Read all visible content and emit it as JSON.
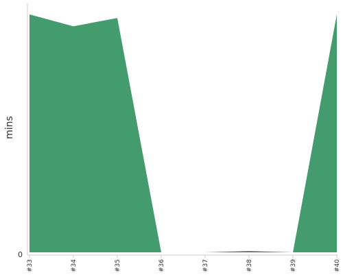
{
  "chart_data": {
    "type": "area",
    "categories": [
      "#33",
      "#34",
      "#35",
      "#36",
      "#37",
      "#38",
      "#39",
      "#40"
    ],
    "series": [
      {
        "values": [
          100,
          95,
          98.5,
          0,
          0,
          0,
          0,
          100
        ],
        "color": "#449c6e"
      },
      {
        "values": [
          0,
          0,
          0,
          0,
          0,
          0.5,
          0,
          0
        ],
        "color": "#5a5a5a"
      }
    ],
    "ylabel": "mins",
    "yticks": [
      "0"
    ],
    "ylim": [
      0,
      100
    ],
    "grid": false,
    "legend": "none"
  }
}
